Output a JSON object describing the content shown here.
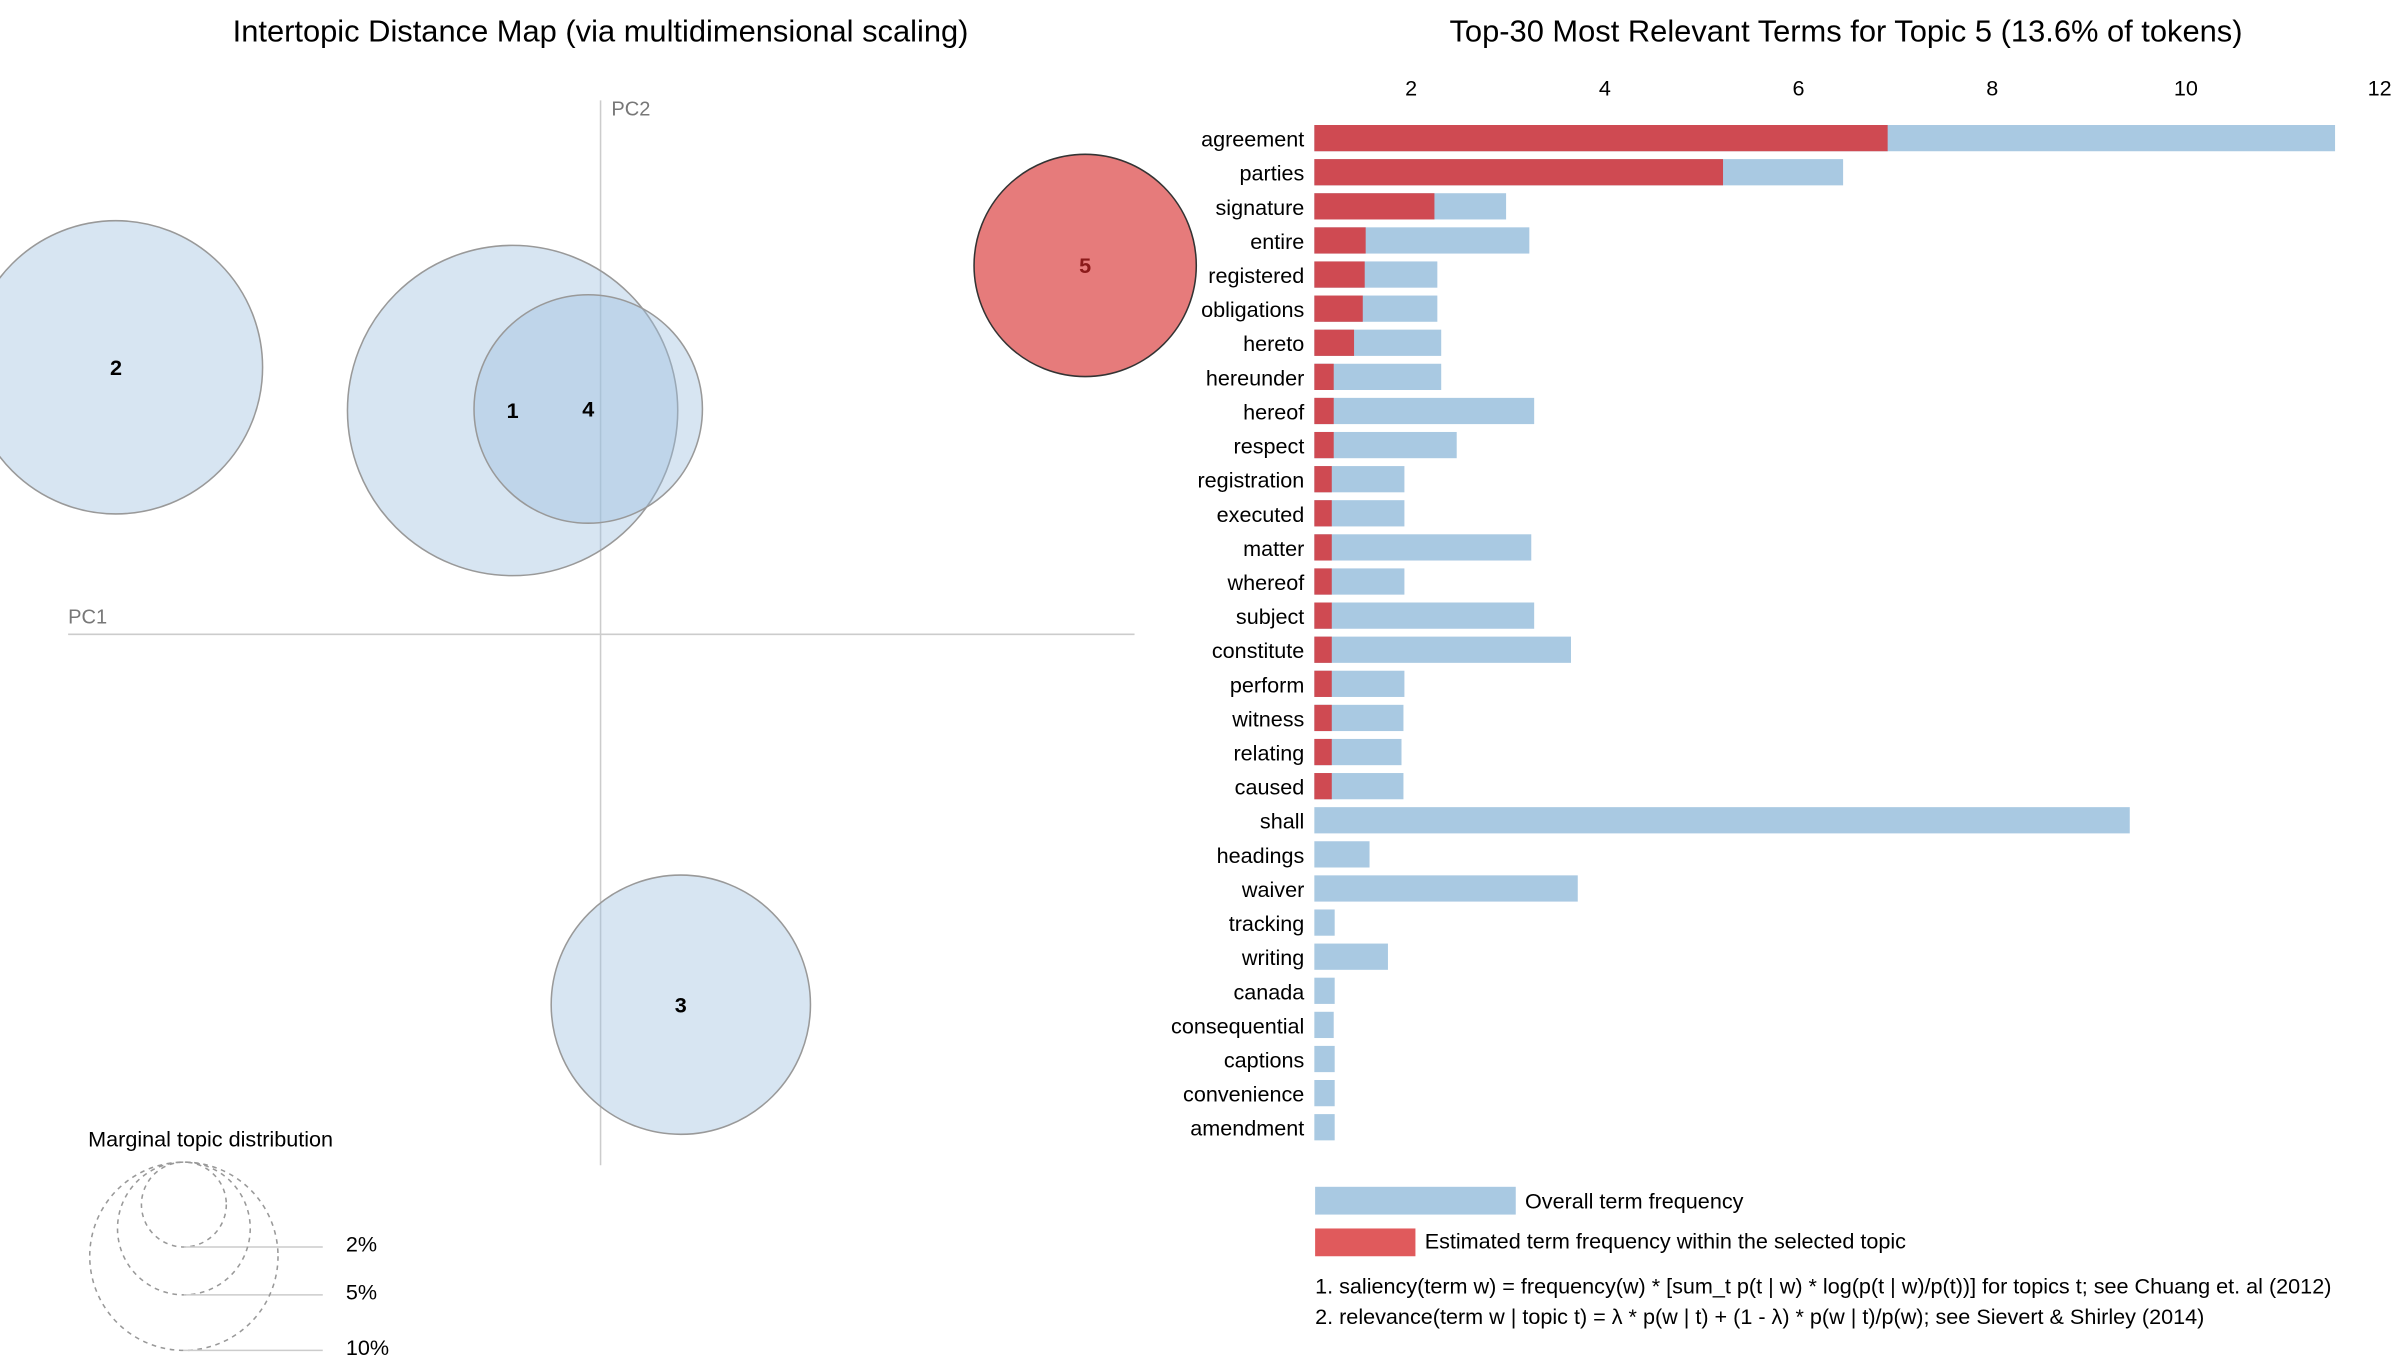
{
  "chart_data": [
    {
      "type": "scatter",
      "title": "Intertopic Distance Map (via multidimensional scaling)",
      "xlabel": "PC1",
      "ylabel": "PC2",
      "topics": [
        {
          "label": "2",
          "selected": false
        },
        {
          "label": "1",
          "selected": false
        },
        {
          "label": "4",
          "selected": false
        },
        {
          "label": "3",
          "selected": false
        },
        {
          "label": "5",
          "selected": true
        }
      ],
      "legend": {
        "title": "Marginal topic distribution",
        "sizes": [
          "2%",
          "5%",
          "10%"
        ]
      },
      "colors": {
        "topic": "#9bbedf",
        "selected": "#e67b7b"
      }
    },
    {
      "type": "bar",
      "title": "Top-30 Most Relevant Terms for Topic 5 (13.6% of tokens)",
      "xticks": [
        "2",
        "4",
        "6",
        "8",
        "10",
        "12"
      ],
      "xlim": [
        1,
        12
      ],
      "categories": [
        "agreement",
        "parties",
        "signature",
        "entire",
        "registered",
        "obligations",
        "hereto",
        "hereunder",
        "hereof",
        "respect",
        "registration",
        "executed",
        "matter",
        "whereof",
        "subject",
        "constitute",
        "perform",
        "witness",
        "relating",
        "caused",
        "shall",
        "headings",
        "waiver",
        "tracking",
        "writing",
        "canada",
        "consequential",
        "captions",
        "convenience",
        "amendment"
      ],
      "series": [
        {
          "name": "Overall term frequency",
          "color": "#a9c9e2",
          "values": [
            11.54,
            6.46,
            2.98,
            3.22,
            2.27,
            2.27,
            2.31,
            2.31,
            3.27,
            2.47,
            1.93,
            1.93,
            3.24,
            1.93,
            3.27,
            3.65,
            1.93,
            1.92,
            1.9,
            1.92,
            9.42,
            1.57,
            3.72,
            1.21,
            1.76,
            1.21,
            1.2,
            1.21,
            1.21,
            1.21
          ]
        },
        {
          "name": "Estimated term frequency within the selected topic",
          "color": "#cf4a52",
          "values": [
            6.92,
            5.22,
            2.24,
            1.53,
            1.52,
            1.5,
            1.41,
            1.2,
            1.2,
            1.2,
            1.18,
            1.18,
            1.18,
            1.18,
            1.18,
            1.18,
            1.18,
            1.18,
            1.18,
            1.18,
            1.0,
            1.0,
            1.0,
            1.0,
            1.0,
            1.0,
            1.0,
            1.0,
            1.0,
            1.0
          ]
        }
      ],
      "legend_colors": {
        "overall": "#a9c9e2",
        "estimated": "#e05a5c"
      },
      "notes": [
        "1. saliency(term w) = frequency(w) * [sum_t p(t | w) * log(p(t | w)/p(t))] for topics t; see Chuang et. al (2012)",
        "2. relevance(term w | topic t) = λ * p(w | t) + (1 - λ) * p(w | t)/p(w); see Sievert & Shirley (2014)"
      ]
    }
  ]
}
